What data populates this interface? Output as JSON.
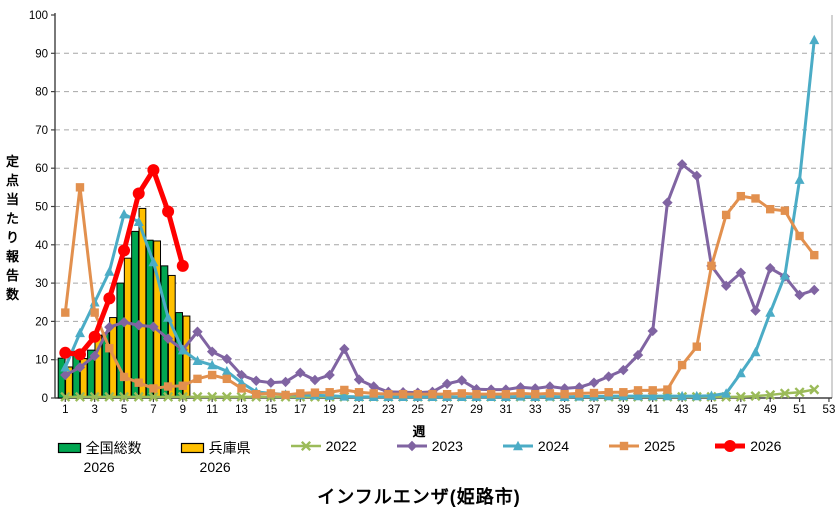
{
  "chart": {
    "title": "インフルエンザ(姫路市)",
    "x_axis_label": "週",
    "y_axis_label": "定点当たり報告数",
    "background": "#FFFFFF"
  },
  "chart_data": {
    "type": "combo bar + line",
    "title": "インフルエンザ(姫路市)",
    "xlabel": "週",
    "ylabel": "定点当たり報告数",
    "x_range": [
      1,
      53
    ],
    "x_tick_labels": [
      1,
      3,
      5,
      7,
      9,
      11,
      13,
      15,
      17,
      19,
      21,
      23,
      25,
      27,
      29,
      31,
      33,
      35,
      37,
      39,
      41,
      43,
      45,
      47,
      49,
      51,
      53
    ],
    "ylim": [
      0,
      100
    ],
    "y_tick_step": 10,
    "grid": "horizontal-dashed",
    "legend_position": "bottom",
    "bar_series": [
      {
        "name": "全国総数",
        "name_line2": "2026",
        "color": "#00A651",
        "weeks": [
          1,
          2,
          3,
          4,
          5,
          6,
          7,
          8,
          9
        ],
        "values": [
          10.4,
          12.2,
          12.5,
          17,
          30,
          43.5,
          41.2,
          34.5,
          22.3
        ]
      },
      {
        "name": "兵庫県",
        "name_line2": "2026",
        "color": "#FFC000",
        "weeks": [
          1,
          2,
          3,
          4,
          5,
          6,
          7,
          8,
          9
        ],
        "values": [
          8.1,
          10.3,
          16.4,
          21,
          36.5,
          49.5,
          41,
          32,
          21.4
        ]
      }
    ],
    "line_series": [
      {
        "name": "2022",
        "color": "#9BBB59",
        "marker": "x",
        "width": 2.5,
        "start_week": 1,
        "values": [
          0.3,
          0.3,
          0.3,
          0.3,
          0.3,
          0.3,
          0.3,
          0.3,
          0.3,
          0.3,
          0.3,
          0.3,
          0.3,
          0.3,
          0.3,
          0.3,
          0.3,
          0.3,
          0.3,
          0.3,
          0.3,
          0.3,
          0.3,
          0.3,
          0.3,
          0.3,
          0.3,
          0.3,
          0.3,
          0.3,
          0.3,
          0.3,
          0.3,
          0.3,
          0.3,
          0.3,
          0.3,
          0.3,
          0.3,
          0.3,
          0.3,
          0.3,
          0.3,
          0.3,
          0.3,
          0.3,
          0.3,
          0.5,
          0.8,
          1.2,
          1.5,
          2.2
        ]
      },
      {
        "name": "2023",
        "color": "#8064A2",
        "marker": "diamond",
        "width": 3,
        "start_week": 1,
        "values": [
          6,
          8,
          11,
          18.5,
          19.8,
          19,
          18.6,
          15.5,
          12.6,
          17.3,
          12.1,
          10.2,
          6,
          4.5,
          4,
          4.2,
          6.6,
          4.7,
          6,
          12.8,
          4.8,
          3,
          1.6,
          1.5,
          1.4,
          1.6,
          3.7,
          4.6,
          2.3,
          2.2,
          2.2,
          2.8,
          2.5,
          3,
          2.5,
          2.8,
          4,
          5.6,
          7.3,
          11.2,
          17.5,
          51,
          61,
          58,
          34.5,
          29.3,
          32.7,
          22.8,
          33.9,
          31.7,
          26.9,
          28.2
        ]
      },
      {
        "name": "2024",
        "color": "#4BACC6",
        "marker": "triangle",
        "width": 3,
        "start_week": 1,
        "values": [
          8,
          17,
          25,
          33,
          48,
          46,
          35.5,
          21,
          12.5,
          9.7,
          8.6,
          7,
          4,
          1.6,
          1.2,
          0.9,
          0.8,
          0.7,
          0.6,
          0.4,
          0.3,
          0.3,
          0.3,
          0.3,
          0.3,
          0.3,
          0.3,
          0.3,
          0.3,
          0.3,
          0.3,
          0.4,
          0.3,
          0.4,
          0.3,
          0.4,
          0.4,
          0.5,
          0.5,
          0.5,
          0.5,
          0.5,
          0.5,
          0.5,
          0.6,
          1.2,
          6.5,
          12,
          22.3,
          32,
          57,
          93.5
        ]
      },
      {
        "name": "2025",
        "color": "#E2904E",
        "marker": "square",
        "width": 3,
        "start_week": 1,
        "values": [
          22.3,
          55,
          22.3,
          13,
          5.5,
          4,
          2.5,
          3,
          3.2,
          5,
          6,
          5,
          2.5,
          1,
          1.2,
          0.8,
          1.2,
          1.4,
          1.5,
          2.1,
          1.5,
          1.2,
          1,
          1,
          1,
          1,
          1,
          1.2,
          1,
          1,
          1,
          1.2,
          1,
          1.2,
          1,
          1.2,
          1.3,
          1.5,
          1.5,
          2,
          2,
          2.2,
          8.6,
          13.4,
          34.5,
          47.8,
          52.7,
          52.1,
          49.3,
          48.9,
          42.3,
          37.3
        ]
      },
      {
        "name": "2026",
        "color": "#FF0000",
        "marker": "circle",
        "width": 5,
        "start_week": 1,
        "values": [
          11.8,
          11.4,
          16,
          26,
          38.5,
          53.4,
          59.5,
          48.7,
          34.5
        ]
      }
    ]
  }
}
